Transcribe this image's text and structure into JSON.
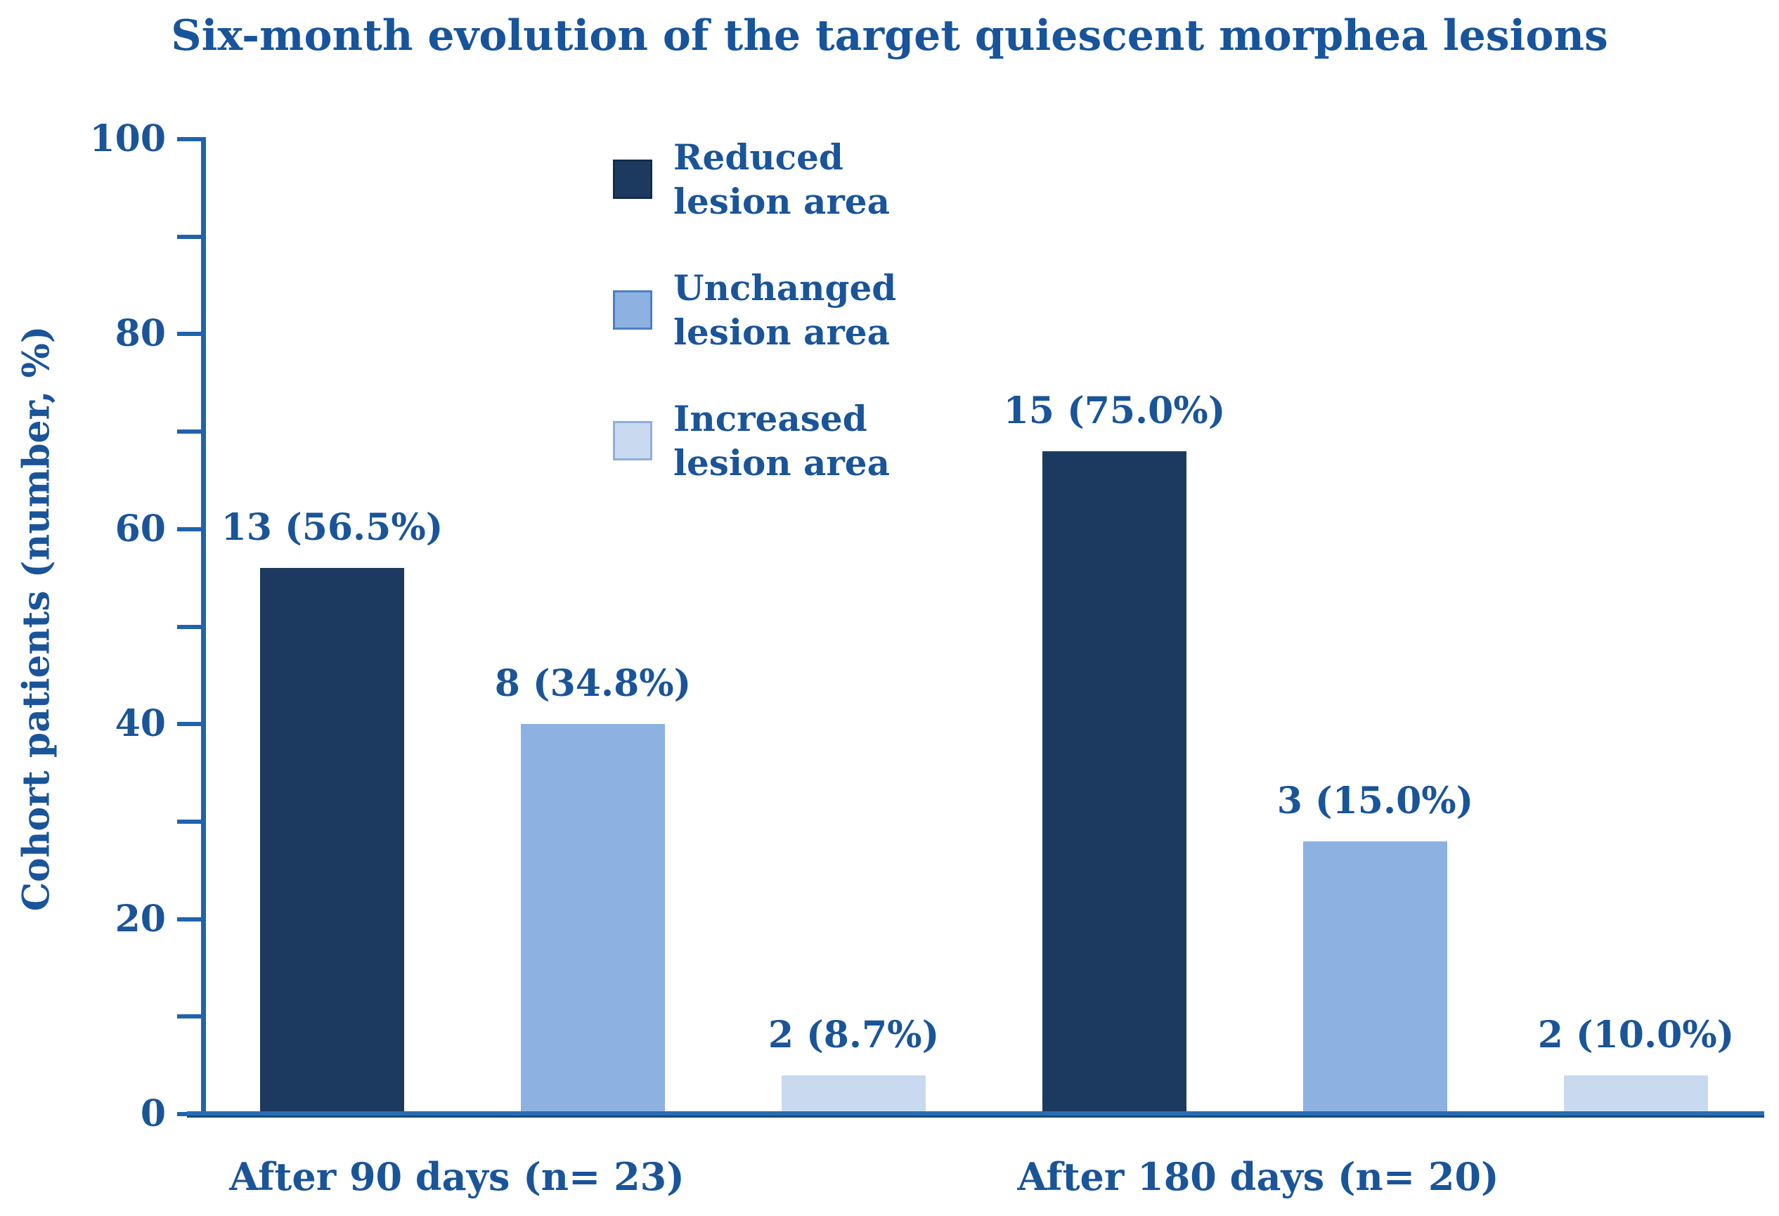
{
  "figure": {
    "title": "Six-month evolution of the target quiescent morphea lesions"
  },
  "colors": {
    "text_blue": "#1A5499",
    "title_blue": "#17549B",
    "axis_blue": "#2063AC",
    "baseline_blue": "#1F5C9C",
    "bar_dark_navy": "#1C3A5F",
    "bar_medium_blue": "#8DB2E2",
    "bar_light_blue": "#C8D9F0"
  },
  "chart_data": {
    "type": "bar",
    "title": "Six-month evolution of the target quiescent morphea lesions",
    "xlabel": "",
    "ylabel": "Cohort patients (number, %)",
    "ylim": [
      0,
      100
    ],
    "y_major_ticks": [
      0,
      20,
      40,
      60,
      80,
      100
    ],
    "y_minor_ticks": [
      10,
      30,
      50,
      70,
      90
    ],
    "grid": false,
    "legend_position": "upper-left-inside",
    "categories": [
      "After 90 days (n= 23)",
      "After 180 days (n= 20)"
    ],
    "series": [
      {
        "name": "Reduced lesion area",
        "fill": "#1C3A5F",
        "border": "#142C49",
        "values": [
          13,
          15
        ],
        "percents": [
          56.5,
          75.0
        ],
        "labels": [
          "13 (56.5%)",
          "15 (75.0%)"
        ],
        "drawn_heights_axis_units": [
          56,
          68
        ]
      },
      {
        "name": "Unchanged lesion area",
        "fill": "#8DB2E2",
        "border": "#4C7FC4",
        "values": [
          8,
          3
        ],
        "percents": [
          34.8,
          15.0
        ],
        "labels": [
          "8 (34.8%)",
          "3 (15.0%)"
        ],
        "drawn_heights_axis_units": [
          40,
          28
        ]
      },
      {
        "name": "Increased lesion area",
        "fill": "#C8D9F0",
        "border": "#8FAEDC",
        "values": [
          2,
          2
        ],
        "percents": [
          8.7,
          10.0
        ],
        "labels": [
          "2 (8.7%)",
          "2 (10.0%)"
        ],
        "drawn_heights_axis_units": [
          4,
          4
        ]
      }
    ]
  }
}
